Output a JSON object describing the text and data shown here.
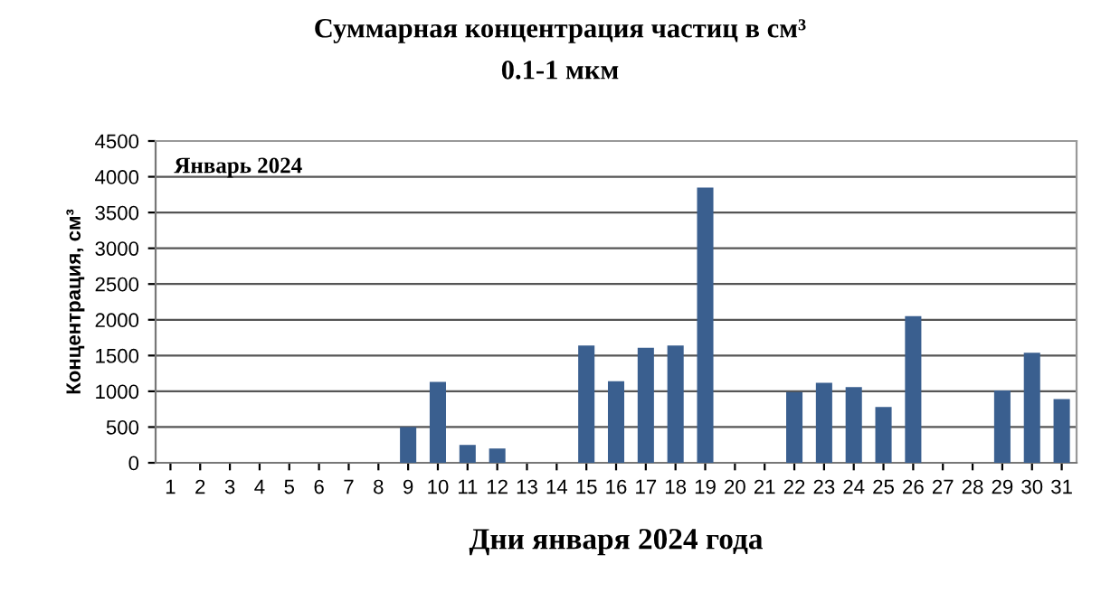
{
  "chart_data": {
    "type": "bar",
    "title": "Суммарная концентрация частиц в см³",
    "subtitle": "0.1-1 мкм",
    "xlabel": "Дни января 2024 года",
    "ylabel": "Концентрация, см³",
    "annotations": [
      "Январь 2024"
    ],
    "categories": [
      "1",
      "2",
      "3",
      "4",
      "5",
      "6",
      "7",
      "8",
      "9",
      "10",
      "11",
      "12",
      "13",
      "14",
      "15",
      "16",
      "17",
      "18",
      "19",
      "20",
      "21",
      "22",
      "23",
      "24",
      "25",
      "26",
      "27",
      "28",
      "29",
      "30",
      "31"
    ],
    "values": [
      null,
      null,
      null,
      null,
      null,
      null,
      null,
      null,
      500,
      1130,
      250,
      200,
      null,
      null,
      1640,
      1140,
      1610,
      1640,
      3850,
      null,
      null,
      990,
      1120,
      1060,
      780,
      2050,
      null,
      null,
      1010,
      1540,
      890
    ],
    "color": "#3a5f8f",
    "ylim": [
      0,
      4500
    ],
    "yticks": [
      0,
      500,
      1000,
      1500,
      2000,
      2500,
      3000,
      3500,
      4000,
      4500
    ],
    "grid": "y"
  }
}
